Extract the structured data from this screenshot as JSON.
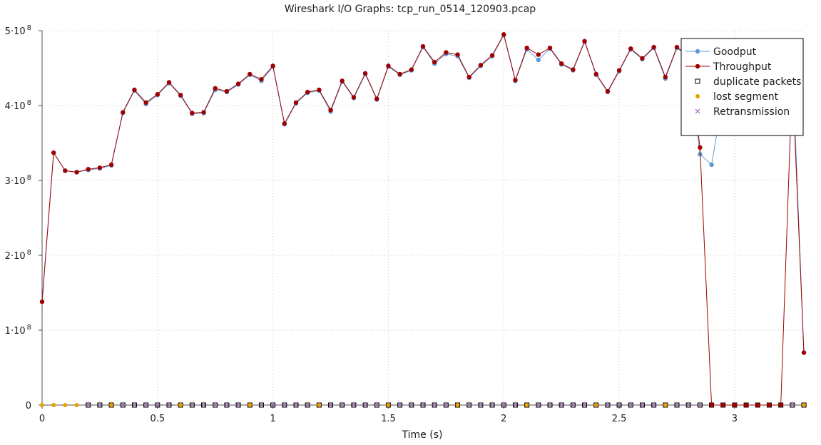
{
  "window": {
    "title": "Wireshark I/O Graphs: tcp_run_0514_120903.pcap"
  },
  "chart_data": {
    "type": "line",
    "title": "Wireshark I/O Graphs: tcp_run_0514_120903.pcap",
    "xlabel": "Time (s)",
    "ylabel": "",
    "xlim": [
      0,
      3.3
    ],
    "ylim": [
      0,
      500000000
    ],
    "grid": true,
    "legend_position": "top-right",
    "x_ticks": [
      {
        "value": 0,
        "label": "0"
      },
      {
        "value": 0.5,
        "label": "0.5"
      },
      {
        "value": 1,
        "label": "1"
      },
      {
        "value": 1.5,
        "label": "1.5"
      },
      {
        "value": 2,
        "label": "2"
      },
      {
        "value": 2.5,
        "label": "2.5"
      },
      {
        "value": 3,
        "label": "3"
      }
    ],
    "y_ticks": [
      {
        "value": 0,
        "label": "0",
        "mantissa": "",
        "exponent": ""
      },
      {
        "value": 100000000,
        "label": "1·10 8",
        "mantissa": "1·10",
        "exponent": "8"
      },
      {
        "value": 200000000,
        "label": "2·10 8",
        "mantissa": "2·10",
        "exponent": "8"
      },
      {
        "value": 300000000,
        "label": "3·10 8",
        "mantissa": "3·10",
        "exponent": "8"
      },
      {
        "value": 400000000,
        "label": "4·10 8",
        "mantissa": "4·10",
        "exponent": "8"
      },
      {
        "value": 500000000,
        "label": "5·10 8",
        "mantissa": "5·10",
        "exponent": "8"
      }
    ],
    "x": [
      0,
      0.05,
      0.1,
      0.15,
      0.2,
      0.25,
      0.3,
      0.35,
      0.4,
      0.45,
      0.5,
      0.55,
      0.6,
      0.65,
      0.7,
      0.75,
      0.8,
      0.85,
      0.9,
      0.95,
      1.0,
      1.05,
      1.1,
      1.15,
      1.2,
      1.25,
      1.3,
      1.35,
      1.4,
      1.45,
      1.5,
      1.55,
      1.6,
      1.65,
      1.7,
      1.75,
      1.8,
      1.85,
      1.9,
      1.95,
      2.0,
      2.05,
      2.1,
      2.15,
      2.2,
      2.25,
      2.3,
      2.35,
      2.4,
      2.45,
      2.5,
      2.55,
      2.6,
      2.65,
      2.7,
      2.75,
      2.8,
      2.85,
      2.9,
      2.95,
      3.0,
      3.05,
      3.1,
      3.15,
      3.2,
      3.25,
      3.3
    ],
    "series": [
      {
        "name": "Goodput",
        "color": "#5b9bd5",
        "marker": "circle",
        "values": [
          138000000,
          337000000,
          313000000,
          311000000,
          314000000,
          316000000,
          320000000,
          390000000,
          420000000,
          402000000,
          414000000,
          430000000,
          413000000,
          389000000,
          390000000,
          421000000,
          418000000,
          428000000,
          441000000,
          433000000,
          452000000,
          375000000,
          403000000,
          417000000,
          420000000,
          392000000,
          432000000,
          410000000,
          442000000,
          408000000,
          452000000,
          441000000,
          447000000,
          478000000,
          456000000,
          469000000,
          466000000,
          437000000,
          453000000,
          466000000,
          494000000,
          433000000,
          475000000,
          461000000,
          476000000,
          455000000,
          447000000,
          485000000,
          441000000,
          418000000,
          446000000,
          475000000,
          462000000,
          477000000,
          436000000,
          477000000,
          465000000,
          335000000,
          321000000,
          411000000,
          464000000,
          445000000,
          478000000,
          459000000,
          480000000,
          462000000,
          70000000
        ]
      },
      {
        "name": "Throughput",
        "color": "#a00000",
        "marker": "circle",
        "values": [
          138000000,
          337000000,
          313000000,
          311000000,
          315000000,
          317000000,
          321000000,
          391000000,
          421000000,
          404000000,
          415000000,
          431000000,
          414000000,
          390000000,
          391000000,
          423000000,
          419000000,
          429000000,
          442000000,
          435000000,
          453000000,
          376000000,
          404000000,
          418000000,
          421000000,
          394000000,
          433000000,
          411000000,
          443000000,
          409000000,
          453000000,
          442000000,
          448000000,
          479000000,
          458000000,
          471000000,
          468000000,
          438000000,
          454000000,
          467000000,
          495000000,
          434000000,
          477000000,
          468000000,
          477000000,
          456000000,
          448000000,
          486000000,
          442000000,
          419000000,
          447000000,
          476000000,
          463000000,
          478000000,
          438000000,
          478000000,
          466000000,
          344000000,
          0,
          0,
          0,
          0,
          0,
          0,
          0,
          440000000,
          70000000
        ]
      },
      {
        "name": "duplicate packets",
        "color": "#000000",
        "marker": "square",
        "values": [
          0,
          0,
          0,
          0,
          0,
          0,
          0,
          0,
          0,
          0,
          0,
          0,
          0,
          0,
          0,
          0,
          0,
          0,
          0,
          0,
          0,
          0,
          0,
          0,
          0,
          0,
          0,
          0,
          0,
          0,
          0,
          0,
          0,
          0,
          0,
          0,
          0,
          0,
          0,
          0,
          0,
          0,
          0,
          0,
          0,
          0,
          0,
          0,
          0,
          0,
          0,
          0,
          0,
          0,
          0,
          0,
          0,
          0,
          0,
          0,
          0,
          0,
          0,
          0,
          0,
          0,
          0
        ]
      },
      {
        "name": "lost segment",
        "color": "#e6a000",
        "marker": "dot",
        "values": [
          0,
          0,
          0,
          0,
          0,
          0,
          0,
          0,
          0,
          0,
          0,
          0,
          0,
          0,
          0,
          0,
          0,
          0,
          0,
          0,
          0,
          0,
          0,
          0,
          0,
          0,
          0,
          0,
          0,
          0,
          0,
          0,
          0,
          0,
          0,
          0,
          0,
          0,
          0,
          0,
          0,
          0,
          0,
          0,
          0,
          0,
          0,
          0,
          0,
          0,
          0,
          0,
          0,
          0,
          0,
          0,
          0,
          0,
          0,
          0,
          0,
          0,
          0,
          0,
          0,
          0,
          0
        ]
      },
      {
        "name": "Retransmission",
        "color": "#9b59b6",
        "marker": "cross",
        "values": [
          0,
          0,
          0,
          0,
          0,
          0,
          0,
          0,
          0,
          0,
          0,
          0,
          0,
          0,
          0,
          0,
          0,
          0,
          0,
          0,
          0,
          0,
          0,
          0,
          0,
          0,
          0,
          0,
          0,
          0,
          0,
          0,
          0,
          0,
          0,
          0,
          0,
          0,
          0,
          0,
          0,
          0,
          0,
          0,
          0,
          0,
          0,
          0,
          0,
          0,
          0,
          0,
          0,
          0,
          0,
          0,
          0,
          0,
          0,
          0,
          0,
          0,
          0,
          0,
          0,
          0,
          0
        ]
      }
    ]
  }
}
